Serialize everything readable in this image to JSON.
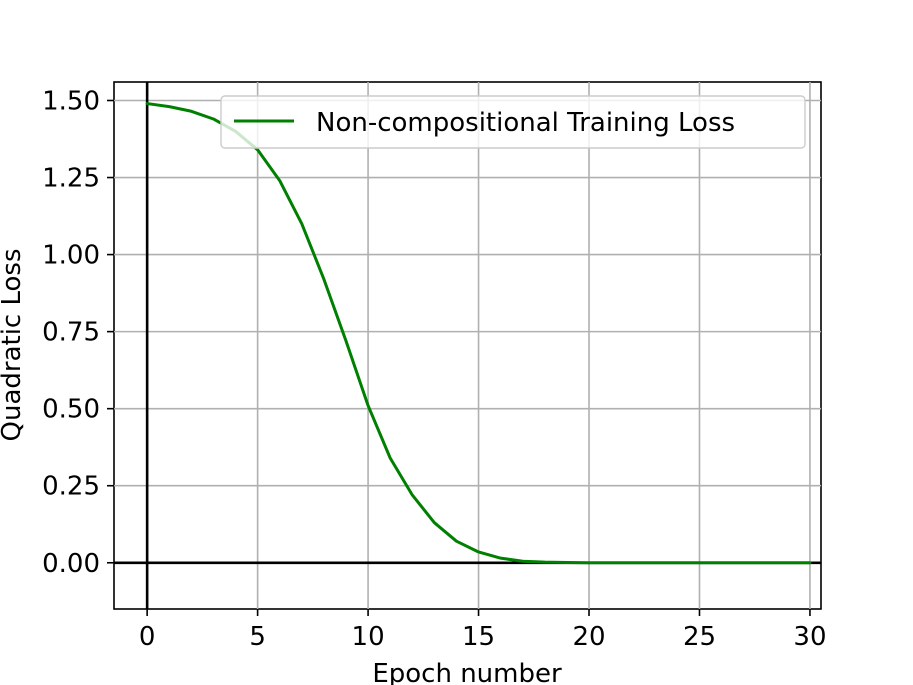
{
  "chart_data": {
    "type": "line",
    "title": "",
    "xlabel": "Epoch number",
    "ylabel": "Quadratic Loss",
    "xlim": [
      -1.5,
      30.5
    ],
    "ylim": [
      -0.15,
      1.56
    ],
    "xticks": [
      0,
      5,
      10,
      15,
      20,
      25,
      30
    ],
    "xtick_labels": [
      "0",
      "5",
      "10",
      "15",
      "20",
      "25",
      "30"
    ],
    "yticks": [
      0.0,
      0.25,
      0.5,
      0.75,
      1.0,
      1.25,
      1.5
    ],
    "ytick_labels": [
      "0.00",
      "0.25",
      "0.50",
      "0.75",
      "1.00",
      "1.25",
      "1.50"
    ],
    "grid": true,
    "legend_position": "top-right",
    "series": [
      {
        "name": "Non-compositional Training Loss",
        "color": "#008000",
        "x": [
          0,
          1,
          2,
          3,
          4,
          5,
          6,
          7,
          8,
          9,
          10,
          11,
          12,
          13,
          14,
          15,
          16,
          17,
          18,
          19,
          20,
          21,
          22,
          23,
          24,
          25,
          26,
          27,
          28,
          29,
          30
        ],
        "y": [
          1.49,
          1.48,
          1.465,
          1.44,
          1.4,
          1.34,
          1.24,
          1.1,
          0.92,
          0.72,
          0.51,
          0.34,
          0.22,
          0.13,
          0.07,
          0.035,
          0.015,
          0.005,
          0.002,
          0.001,
          0,
          0,
          0,
          0,
          0,
          0,
          0,
          0,
          0,
          0,
          0
        ]
      }
    ]
  }
}
